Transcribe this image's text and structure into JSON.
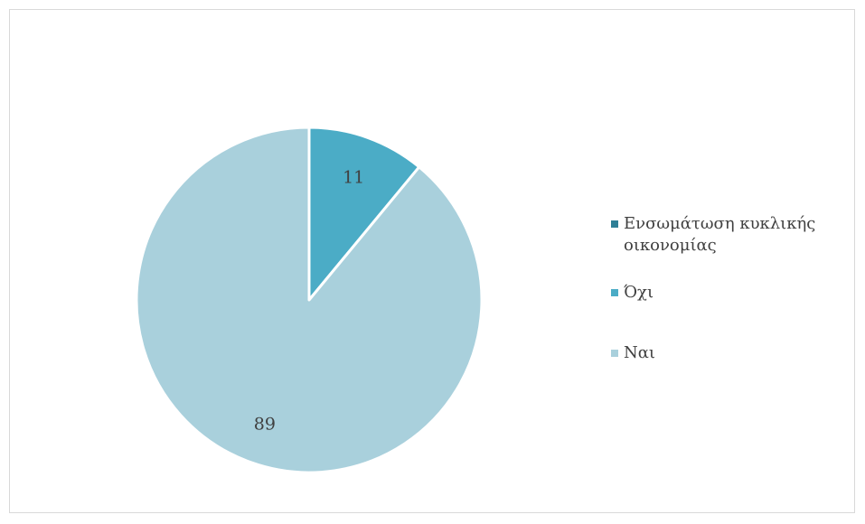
{
  "chart_data": {
    "type": "pie",
    "title": "",
    "legend_position": "right",
    "slices": [
      {
        "label": "Ενσωμάτωση κυκλικής οικονομίας",
        "value": 0,
        "color": "#2e7f96"
      },
      {
        "label": "Όχι",
        "value": 11,
        "color": "#4bacc6"
      },
      {
        "label": "Ναι",
        "value": 89,
        "color": "#a9d0dc"
      }
    ],
    "data_labels": [
      "11",
      "89"
    ]
  }
}
